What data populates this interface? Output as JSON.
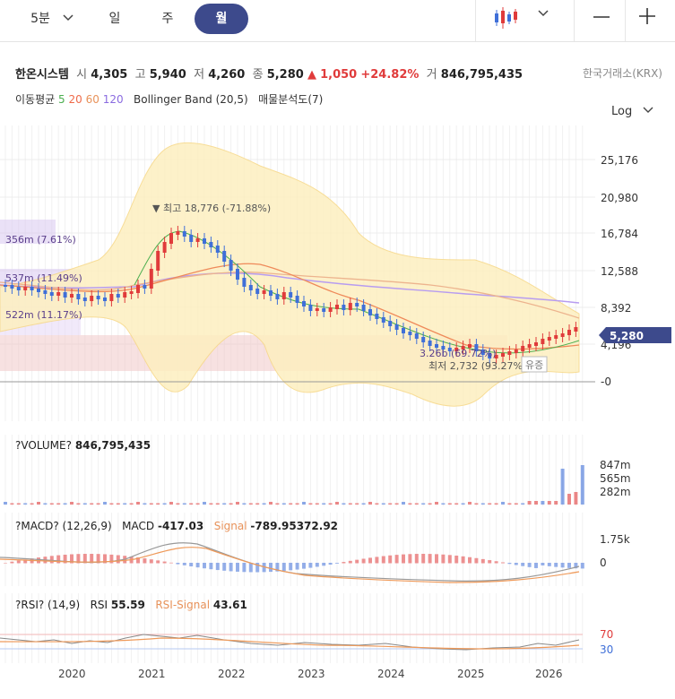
{
  "tabs": [
    {
      "label": "5분"
    },
    {
      "label": "일"
    },
    {
      "label": "주"
    },
    {
      "label": "월"
    }
  ],
  "icons": {
    "dropdown": "chevron-down-icon",
    "chart_type": "candlestick-icon",
    "minus": "minus-icon",
    "plus": "plus-icon"
  },
  "stock": {
    "name": "한온시스템",
    "open_label": "시",
    "open": "4,305",
    "high_label": "고",
    "high": "5,940",
    "low_label": "저",
    "low": "4,260",
    "close_label": "종",
    "close": "5,280",
    "change_arrow": "▲",
    "change": "1,050",
    "change_pct": "+24.82%",
    "volume_label": "거",
    "volume": "846,795,435",
    "exchange": "한국거래소(KRX)"
  },
  "indicators": {
    "ma_label": "이동평균",
    "ma5": "5",
    "ma20": "20",
    "ma60": "60",
    "ma120": "120",
    "bollinger": "Bollinger Band (20,5)",
    "vp": "매물분석도(7)"
  },
  "scale_label": "Log",
  "price_axis": [
    "25,176",
    "20,980",
    "16,784",
    "12,588",
    "8,392",
    "4,196",
    "-0"
  ],
  "current_price": "5,280",
  "annotations": {
    "high": "▼ 최고 18,776 (-71.88%)",
    "low": "최저 2,732 (93.27%) ▲",
    "vp1": "356m (7.61%)",
    "vp2": "537m (11.49%)",
    "vp3": "522m (11.17%)",
    "vp4": "3.26b (69.72%)",
    "badge": "유증"
  },
  "volume_panel": {
    "title": "?VOLUME?",
    "value": "846,795,435",
    "axis": [
      "847m",
      "565m",
      "282m"
    ]
  },
  "macd_panel": {
    "title": "?MACD? (12,26,9)",
    "macd_label": "MACD",
    "macd": "-417.03",
    "signal_label": "Signal",
    "signal": "-789.95372.92",
    "axis": [
      "1.75k",
      "0"
    ]
  },
  "rsi_panel": {
    "title": "?RSI? (14,9)",
    "rsi_label": "RSI",
    "rsi": "55.59",
    "sig_label": "RSI-Signal",
    "sig": "43.61",
    "axis": [
      "70",
      "30"
    ]
  },
  "x_axis": [
    "2020",
    "2021",
    "2022",
    "2023",
    "2024",
    "2025",
    "2026"
  ],
  "colors": {
    "up": "#e03b3b",
    "down": "#3f6fd8",
    "accent": "#3d4a8c",
    "bb": "#fde9a8",
    "ma5": "#4caf50",
    "ma20": "#ef8a5a",
    "ma60": "#e8a67a",
    "ma120": "#a98be6"
  }
}
